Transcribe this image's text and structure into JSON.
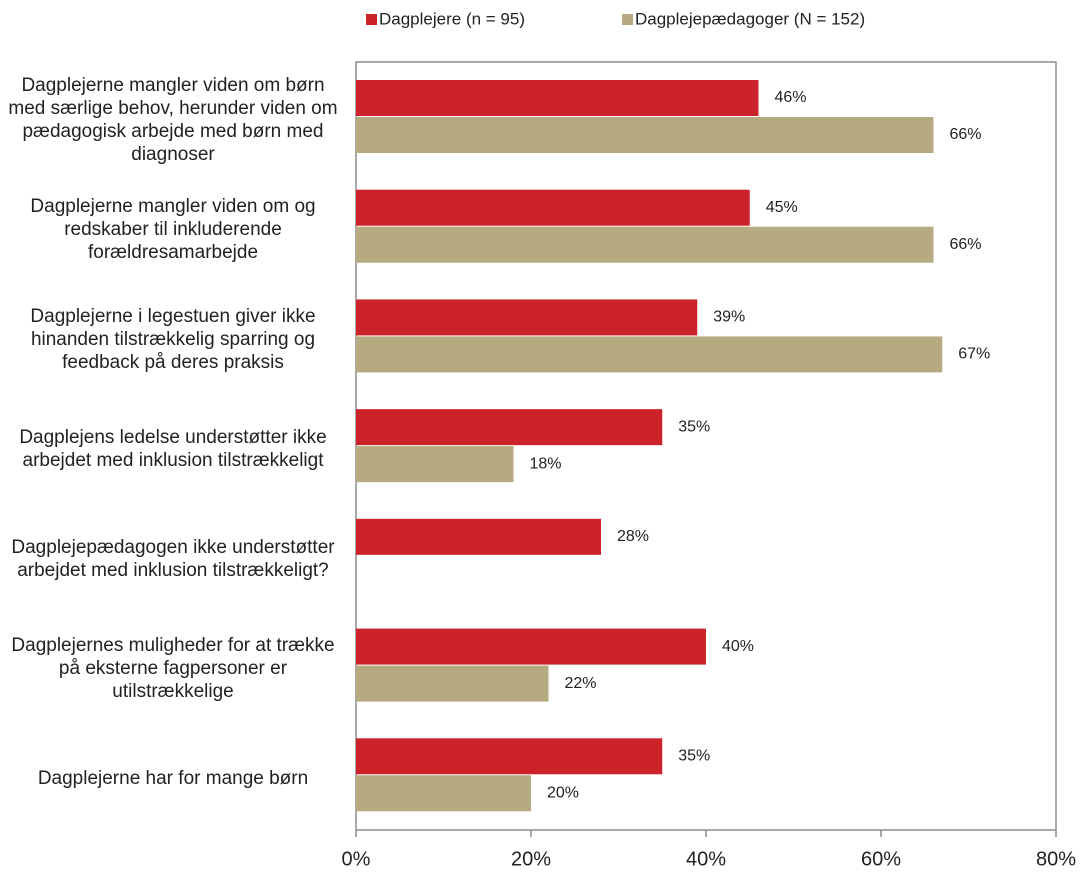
{
  "chart_data": {
    "type": "hbar",
    "categories": [
      "Dagplejerne mangler viden om børn med særlige behov, herunder viden om pædagogisk arbejde med børn med diagnoser",
      "Dagplejerne mangler viden om og redskaber til inkluderende forældresamarbejde",
      "Dagplejerne i legestuen giver ikke hinanden tilstrækkelig sparring og feedback på deres praksis",
      "Dagplejens ledelse understøtter ikke arbejdet med inklusion tilstrækkeligt",
      "Dagplejepædagogen ikke understøtter arbejdet med inklusion tilstrækkeligt?",
      "Dagplejernes muligheder for at trække på eksterne fagpersoner er utilstrækkelige",
      "Dagplejerne har for mange børn"
    ],
    "series": [
      {
        "name": "Dagplejere (n = 95)",
        "color": "#cc2229",
        "values": [
          46,
          45,
          39,
          35,
          28,
          40,
          35
        ],
        "value_labels": [
          "46%",
          "45%",
          "39%",
          "35%",
          "28%",
          "40%",
          "35%"
        ]
      },
      {
        "name": "Dagplejepædagoger (N = 152)",
        "color": "#b5aa80",
        "values": [
          66,
          66,
          67,
          18,
          null,
          22,
          20
        ],
        "value_labels": [
          "66%",
          "66%",
          "67%",
          "18%",
          null,
          "22%",
          "20%"
        ]
      }
    ],
    "xlim": [
      0,
      80
    ],
    "xticks": [
      {
        "value": 0,
        "label": "0%"
      },
      {
        "value": 20,
        "label": "20%"
      },
      {
        "value": 40,
        "label": "40%"
      },
      {
        "value": 60,
        "label": "60%"
      },
      {
        "value": 80,
        "label": "80%"
      }
    ],
    "grid": false
  }
}
